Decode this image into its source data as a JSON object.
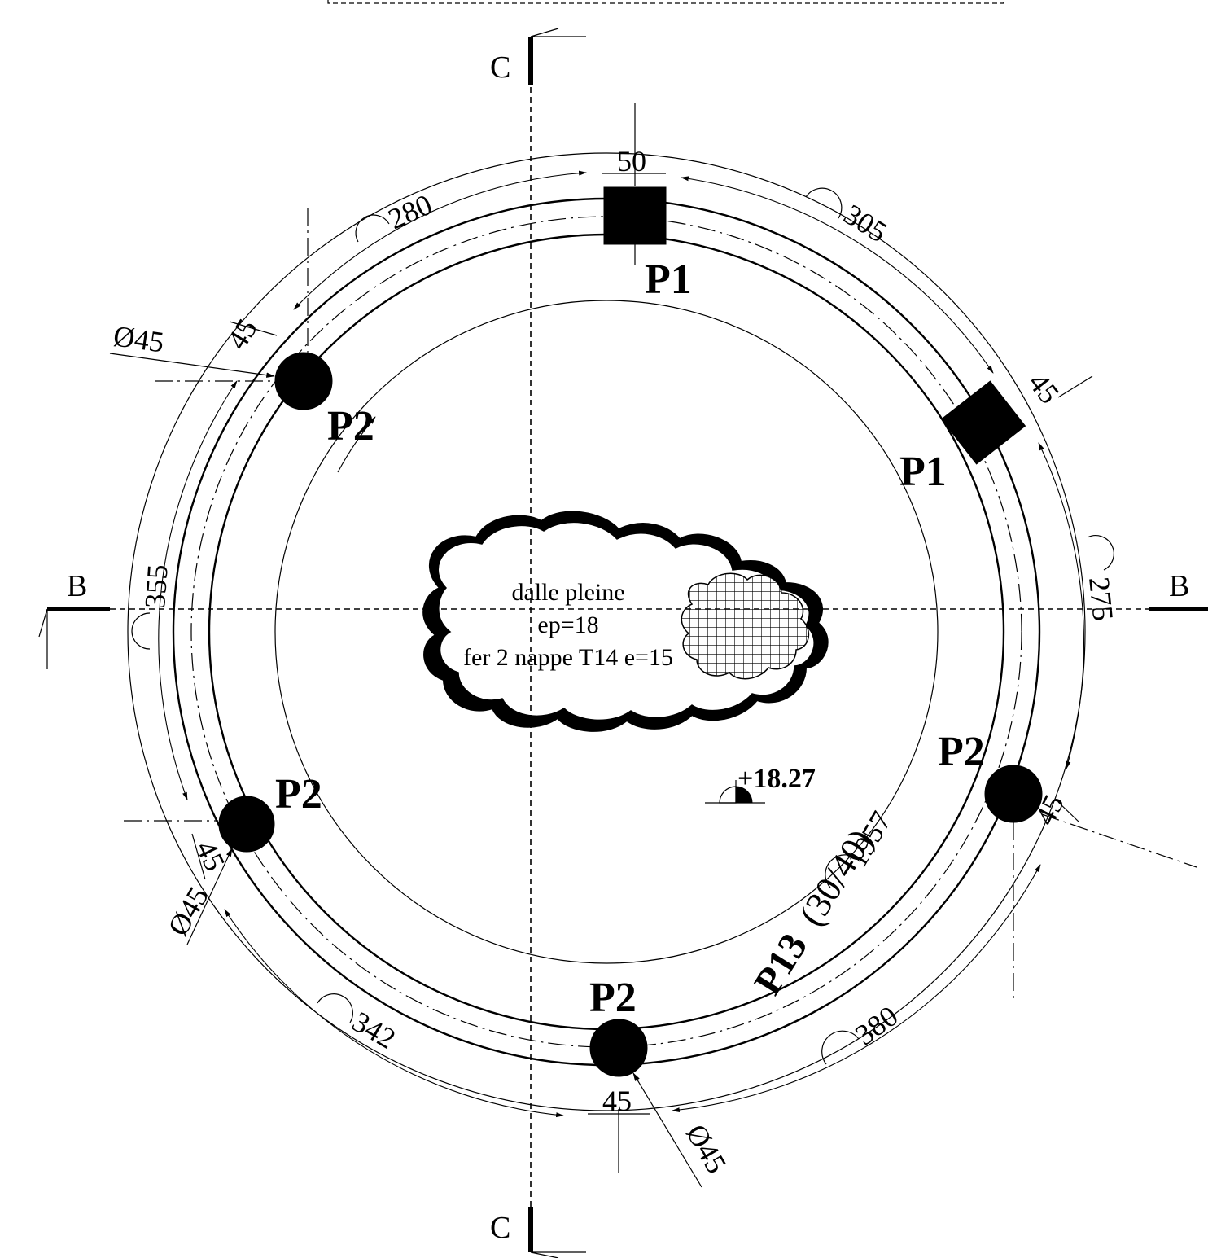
{
  "section_marks": {
    "b": "B",
    "c": "C"
  },
  "pillars": {
    "square": "P1",
    "round": "P2"
  },
  "beam_label": {
    "name": "P13",
    "section": "(30/40)"
  },
  "slab_note": {
    "line1": "dalle pleine",
    "line2": "ep=18",
    "line3": "fer 2 nappe T14 e=15"
  },
  "level_mark": "+18.27",
  "dimensions": {
    "arc_top_left": "280",
    "arc_top_right": "305",
    "arc_left": "355",
    "arc_right": "275",
    "arc_bottom_left": "342",
    "arc_bottom_right": "380",
    "inner_arc": "1957",
    "top_width": "50",
    "square_side": "45",
    "round_side": "45",
    "bottom_width": "45",
    "diameter": "Ø45"
  }
}
